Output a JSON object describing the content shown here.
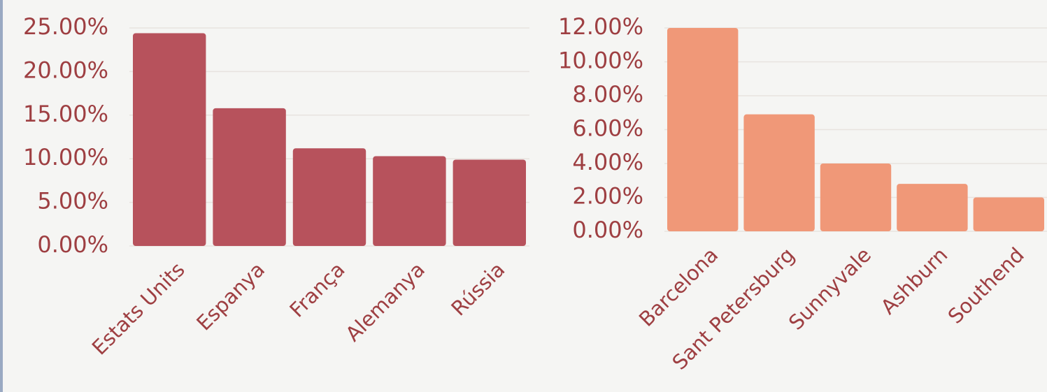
{
  "chart_data": [
    {
      "type": "bar",
      "categories": [
        "Estats Units",
        "Espanya",
        "França",
        "Alemanya",
        "Rússia"
      ],
      "values": [
        24.4,
        15.8,
        11.2,
        10.3,
        9.9
      ],
      "color": "#b7525c",
      "ylim": [
        0,
        25
      ],
      "yticks": [
        {
          "value": 0,
          "label": "0.00%"
        },
        {
          "value": 5,
          "label": "5.00%"
        },
        {
          "value": 10,
          "label": "10.00%"
        },
        {
          "value": 15,
          "label": "15.00%"
        },
        {
          "value": 20,
          "label": "20.00%"
        },
        {
          "value": 25,
          "label": "25.00%"
        }
      ],
      "grid": true
    },
    {
      "type": "bar",
      "categories": [
        "Barcelona",
        "Sant Petersburg",
        "Sunnyvale",
        "Ashburn",
        "Southend"
      ],
      "values": [
        12.0,
        6.9,
        4.0,
        2.8,
        2.0
      ],
      "color": "#f09878",
      "ylim": [
        0,
        12
      ],
      "yticks": [
        {
          "value": 0,
          "label": "0.00%"
        },
        {
          "value": 2,
          "label": "2.00%"
        },
        {
          "value": 4,
          "label": "4.00%"
        },
        {
          "value": 6,
          "label": "6.00%"
        },
        {
          "value": 8,
          "label": "8.00%"
        },
        {
          "value": 10,
          "label": "10.00%"
        },
        {
          "value": 12,
          "label": "12.00%"
        }
      ],
      "grid": true
    }
  ]
}
